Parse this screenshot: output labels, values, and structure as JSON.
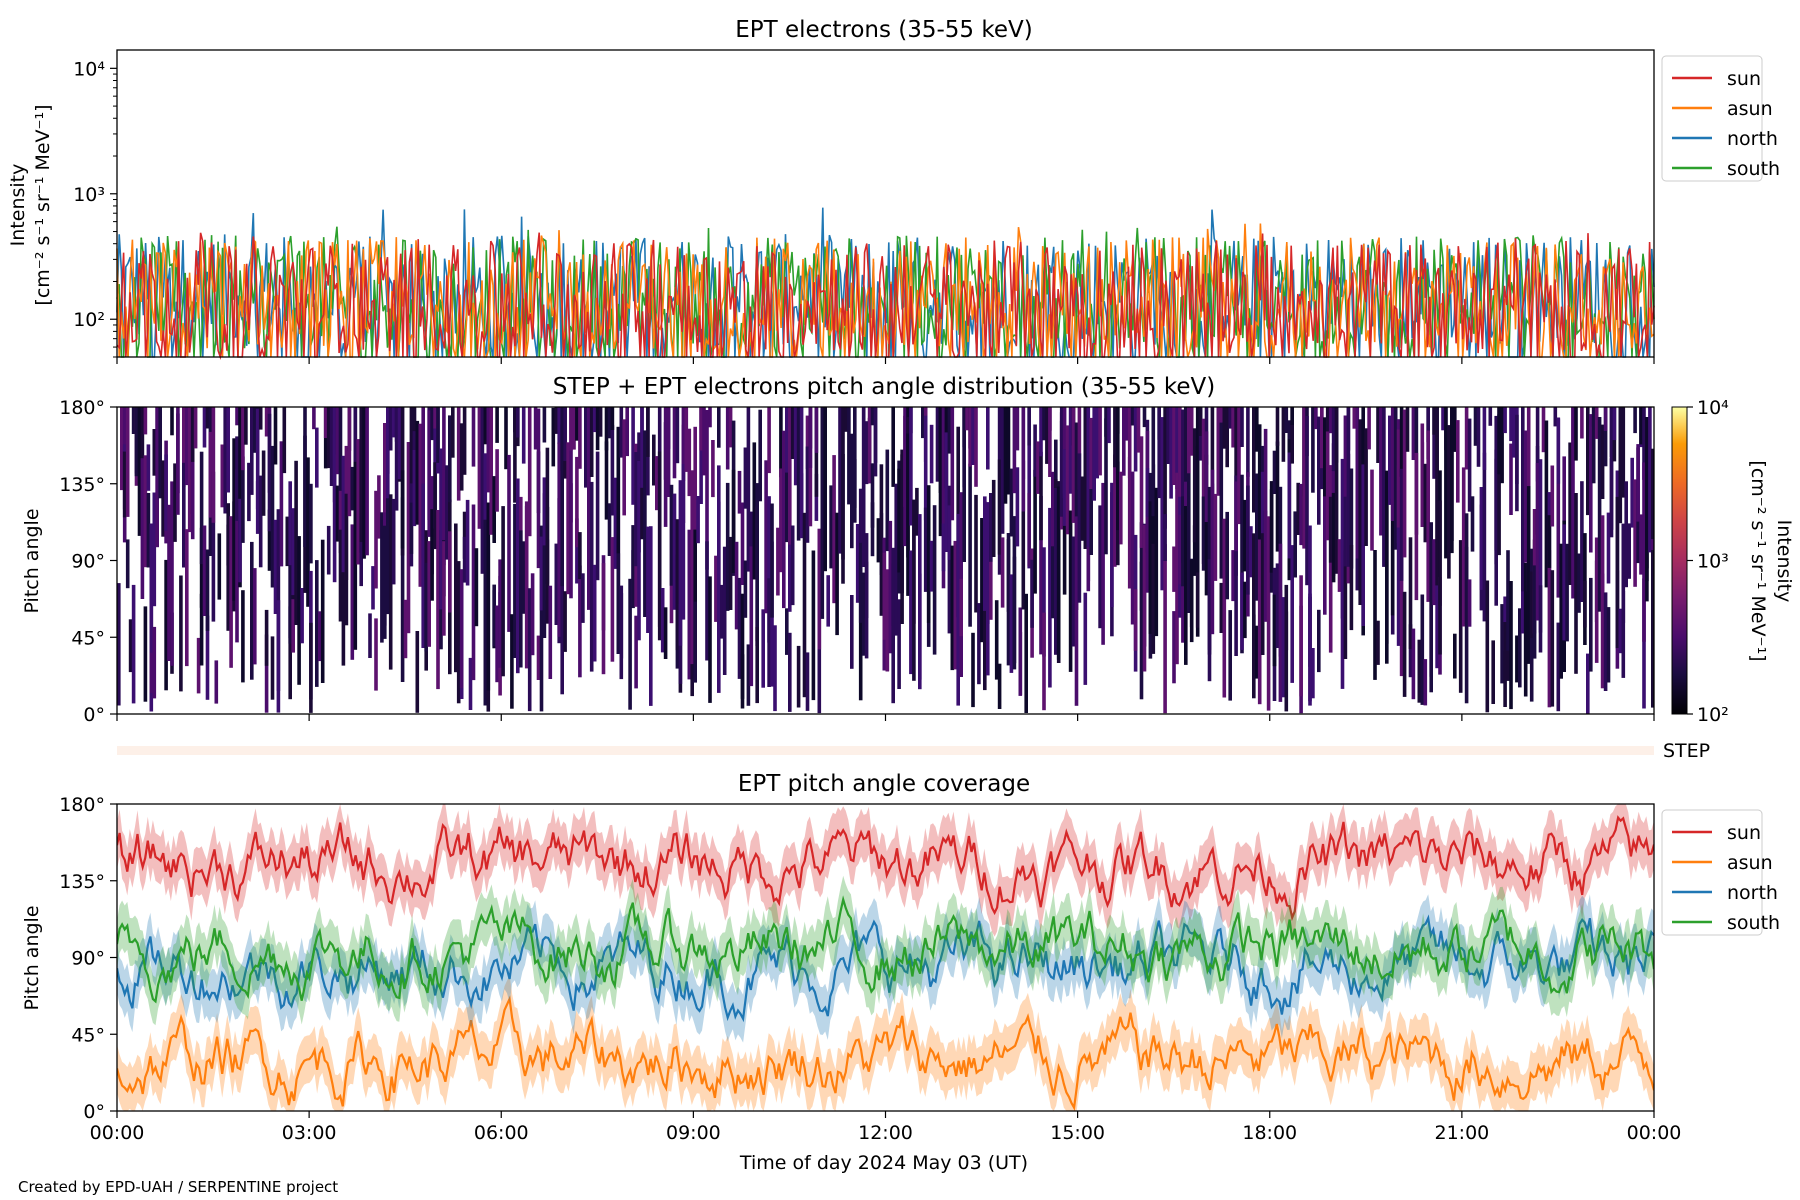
{
  "credit": "Created by EPD-UAH / SERPENTINE project",
  "chart_data": [
    {
      "id": "intensity",
      "type": "line",
      "title": "EPT electrons (35-55 keV)",
      "ylabel_line1": "Intensity",
      "ylabel_line2": "[cm⁻² s⁻¹ sr⁻¹ MeV⁻¹]",
      "yscale": "log",
      "ylim": [
        50,
        14000
      ],
      "yticks": [
        {
          "value": 100,
          "label": "10²"
        },
        {
          "value": 1000,
          "label": "10³"
        },
        {
          "value": 10000,
          "label": "10⁴"
        }
      ],
      "xlim": [
        "2024-05-03 00:00",
        "2024-05-04 00:00"
      ],
      "legend": "outside-top-right",
      "series": [
        {
          "name": "sun",
          "color": "#d62728",
          "typical": 150,
          "min": 50,
          "max": 500
        },
        {
          "name": "asun",
          "color": "#ff7f0e",
          "typical": 160,
          "min": 50,
          "max": 600
        },
        {
          "name": "north",
          "color": "#1f77b4",
          "typical": 170,
          "min": 50,
          "max": 800
        },
        {
          "name": "south",
          "color": "#2ca02c",
          "typical": 165,
          "min": 50,
          "max": 580
        }
      ]
    },
    {
      "id": "pad",
      "type": "heatmap",
      "title": "STEP + EPT electrons pitch angle distribution (35-55 keV)",
      "ylabel": "Pitch angle",
      "ylim": [
        0,
        180
      ],
      "yticks": [
        "0°",
        "45°",
        "90°",
        "135°",
        "180°"
      ],
      "colormap": "inferno",
      "color_scale": "log",
      "color_range": [
        100,
        10000
      ],
      "colorbar_ticks": [
        "10²",
        "10³",
        "10⁴"
      ],
      "colorbar_label_line1": "Intensity",
      "colorbar_label_line2": "[cm⁻² s⁻¹ sr⁻¹ MeV⁻¹]",
      "typical_intensity": 150,
      "step_label": "STEP"
    },
    {
      "id": "coverage",
      "type": "line",
      "title": "EPT pitch angle coverage",
      "ylabel": "Pitch angle",
      "xlabel": "Time of day 2024 May 03 (UT)",
      "ylim": [
        0,
        180
      ],
      "yticks": [
        "0°",
        "45°",
        "90°",
        "135°",
        "180°"
      ],
      "xticks": [
        "00:00",
        "03:00",
        "06:00",
        "09:00",
        "12:00",
        "15:00",
        "18:00",
        "21:00",
        "00:00"
      ],
      "legend": "outside-top-right",
      "series": [
        {
          "name": "sun",
          "color": "#d62728",
          "mean_deg": 145
        },
        {
          "name": "asun",
          "color": "#ff7f0e",
          "mean_deg": 30
        },
        {
          "name": "north",
          "color": "#1f77b4",
          "mean_deg": 85
        },
        {
          "name": "south",
          "color": "#2ca02c",
          "mean_deg": 95
        }
      ]
    }
  ]
}
